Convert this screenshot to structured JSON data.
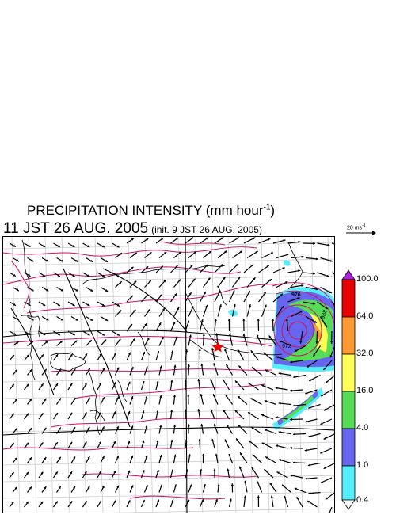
{
  "title": {
    "main": "PRECIPITATION INTENSITY (mm hour",
    "exp": "-1",
    "close": ")"
  },
  "subtitle": {
    "time": "11 JST 26 AUG. 2005",
    "init": "(init. 9 JST 26 AUG. 2005)"
  },
  "wind_scale": {
    "label": "20 ms",
    "exp": "-1"
  },
  "map": {
    "markers": [
      "red-star"
    ],
    "contour_labels": [
      "976",
      "972",
      "988"
    ]
  },
  "colorbar": {
    "labels": [
      "100.0",
      "64.0",
      "32.0",
      "16.0",
      "4.0",
      "1.0",
      "0.4"
    ],
    "colors": [
      "#aa22dd",
      "#e60000",
      "#ff9933",
      "#ffff55",
      "#55dd55",
      "#6666ee",
      "#55eeff",
      "#ffffff"
    ]
  }
}
